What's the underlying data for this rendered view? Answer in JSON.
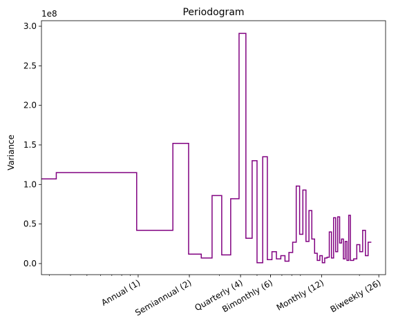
{
  "chart_data": {
    "type": "line",
    "title": "Periodogram",
    "ylabel": "Variance",
    "xlabel": "",
    "x_scale": "log",
    "y_scale_factor_label": "1e8",
    "xlim": [
      0.27,
      28.5
    ],
    "ylim": [
      -0.14,
      3.07
    ],
    "y_ticks": [
      0.0,
      0.5,
      1.0,
      1.5,
      2.0,
      2.5,
      3.0
    ],
    "y_tick_labels": [
      "0.0",
      "0.5",
      "1.0",
      "1.5",
      "2.0",
      "2.5",
      "3.0"
    ],
    "x_ticks": [
      1,
      2,
      4,
      6,
      12,
      26
    ],
    "x_tick_labels": [
      "Annual (1)",
      "Semiannual (2)",
      "Quarterly (4)",
      "Bimonthly (6)",
      "Monthly (12)",
      "Biweekly (26)"
    ],
    "grid": false,
    "line_color": "#800080",
    "drawstyle": "steps",
    "series": [
      {
        "points": [
          [
            0.27,
            1.07
          ],
          [
            0.33,
            1.07
          ],
          [
            0.33,
            1.15
          ],
          [
            0.98,
            1.15
          ],
          [
            0.98,
            0.42
          ],
          [
            1.6,
            0.42
          ],
          [
            1.6,
            1.52
          ],
          [
            1.98,
            1.52
          ],
          [
            1.98,
            0.12
          ],
          [
            2.35,
            0.12
          ],
          [
            2.35,
            0.07
          ],
          [
            2.72,
            0.07
          ],
          [
            2.72,
            0.86
          ],
          [
            3.1,
            0.86
          ],
          [
            3.1,
            0.11
          ],
          [
            3.5,
            0.11
          ],
          [
            3.5,
            0.82
          ],
          [
            3.92,
            0.82
          ],
          [
            3.92,
            2.91
          ],
          [
            4.3,
            2.91
          ],
          [
            4.3,
            0.32
          ],
          [
            4.68,
            0.32
          ],
          [
            4.68,
            1.3
          ],
          [
            5.0,
            1.3
          ],
          [
            5.0,
            0.01
          ],
          [
            5.4,
            0.01
          ],
          [
            5.4,
            1.35
          ],
          [
            5.75,
            1.35
          ],
          [
            5.75,
            0.05
          ],
          [
            6.12,
            0.05
          ],
          [
            6.12,
            0.15
          ],
          [
            6.5,
            0.15
          ],
          [
            6.5,
            0.06
          ],
          [
            6.9,
            0.06
          ],
          [
            6.9,
            0.1
          ],
          [
            7.3,
            0.1
          ],
          [
            7.3,
            0.03
          ],
          [
            7.7,
            0.03
          ],
          [
            7.7,
            0.14
          ],
          [
            8.1,
            0.14
          ],
          [
            8.1,
            0.27
          ],
          [
            8.5,
            0.27
          ],
          [
            8.5,
            0.98
          ],
          [
            8.9,
            0.98
          ],
          [
            8.9,
            0.37
          ],
          [
            9.3,
            0.37
          ],
          [
            9.3,
            0.93
          ],
          [
            9.7,
            0.93
          ],
          [
            9.7,
            0.28
          ],
          [
            10.1,
            0.28
          ],
          [
            10.1,
            0.67
          ],
          [
            10.5,
            0.67
          ],
          [
            10.5,
            0.31
          ],
          [
            10.9,
            0.31
          ],
          [
            10.9,
            0.13
          ],
          [
            11.3,
            0.13
          ],
          [
            11.3,
            0.04
          ],
          [
            11.7,
            0.04
          ],
          [
            11.7,
            0.1
          ],
          [
            12.1,
            0.1
          ],
          [
            12.1,
            0.01
          ],
          [
            12.5,
            0.01
          ],
          [
            12.5,
            0.07
          ],
          [
            12.9,
            0.07
          ],
          [
            12.9,
            0.08
          ],
          [
            13.3,
            0.08
          ],
          [
            13.3,
            0.4
          ],
          [
            13.7,
            0.4
          ],
          [
            13.7,
            0.07
          ],
          [
            14.1,
            0.07
          ],
          [
            14.1,
            0.58
          ],
          [
            14.5,
            0.58
          ],
          [
            14.5,
            0.15
          ],
          [
            14.9,
            0.15
          ],
          [
            14.9,
            0.59
          ],
          [
            15.3,
            0.59
          ],
          [
            15.3,
            0.26
          ],
          [
            15.7,
            0.26
          ],
          [
            15.7,
            0.31
          ],
          [
            16.1,
            0.31
          ],
          [
            16.1,
            0.06
          ],
          [
            16.5,
            0.06
          ],
          [
            16.5,
            0.28
          ],
          [
            16.9,
            0.28
          ],
          [
            16.9,
            0.04
          ],
          [
            17.3,
            0.04
          ],
          [
            17.3,
            0.61
          ],
          [
            17.7,
            0.61
          ],
          [
            17.7,
            0.04
          ],
          [
            18.5,
            0.04
          ],
          [
            18.5,
            0.06
          ],
          [
            19.3,
            0.06
          ],
          [
            19.3,
            0.24
          ],
          [
            20.1,
            0.24
          ],
          [
            20.1,
            0.15
          ],
          [
            20.9,
            0.15
          ],
          [
            20.9,
            0.42
          ],
          [
            21.7,
            0.42
          ],
          [
            21.7,
            0.1
          ],
          [
            22.5,
            0.1
          ],
          [
            22.5,
            0.27
          ],
          [
            23.5,
            0.27
          ]
        ]
      }
    ]
  }
}
